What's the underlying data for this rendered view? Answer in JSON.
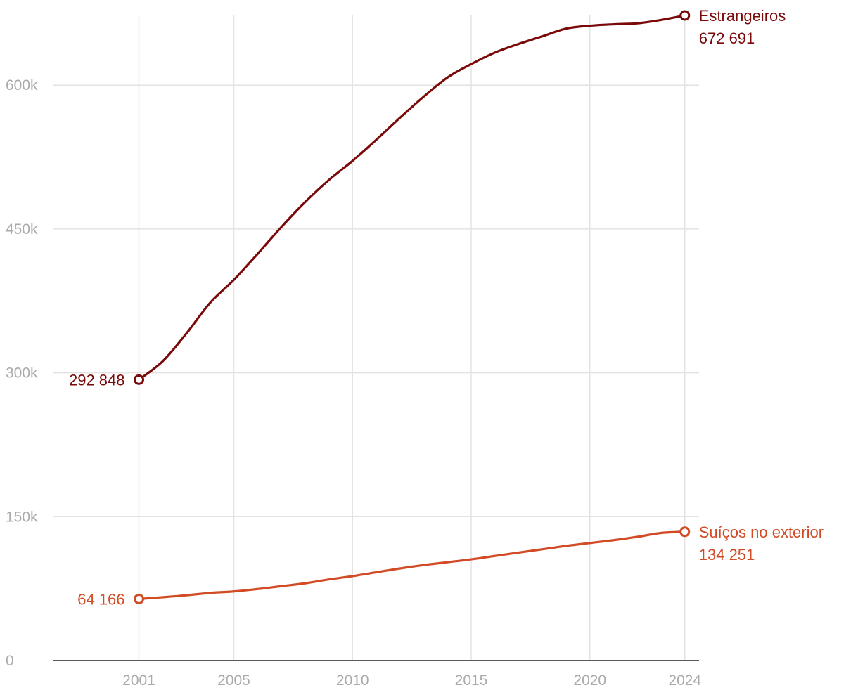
{
  "chart_data": {
    "type": "line",
    "x": [
      2001,
      2002,
      2003,
      2004,
      2005,
      2006,
      2007,
      2008,
      2009,
      2010,
      2011,
      2012,
      2013,
      2014,
      2015,
      2016,
      2017,
      2018,
      2019,
      2020,
      2021,
      2022,
      2023,
      2024
    ],
    "series": [
      {
        "name": "Estrangeiros",
        "color": "#7a0a0a",
        "values": [
          292848,
          312000,
          341000,
          373000,
          397000,
          424000,
          452000,
          478000,
          501000,
          521000,
          543000,
          566000,
          588000,
          608000,
          622000,
          634000,
          643000,
          651000,
          659000,
          662000,
          663500,
          664500,
          668000,
          672691
        ],
        "start_label": "292 848",
        "end_label": "672 691"
      },
      {
        "name": "Suíços no exterior",
        "color": "#d24b25",
        "values": [
          64166,
          66000,
          68000,
          70500,
          72000,
          74500,
          77500,
          80500,
          84500,
          88000,
          92000,
          96000,
          99500,
          102500,
          105500,
          109000,
          112500,
          116000,
          119500,
          122500,
          125500,
          129000,
          133000,
          134251
        ],
        "start_label": "64 166",
        "end_label": "134 251"
      }
    ],
    "y_ticks": [
      0,
      150000,
      300000,
      450000,
      600000
    ],
    "y_tick_labels": [
      "0",
      "150k",
      "300k",
      "450k",
      "600k"
    ],
    "x_ticks": [
      2001,
      2005,
      2010,
      2015,
      2020,
      2024
    ],
    "x_tick_labels": [
      "2001",
      "2005",
      "2010",
      "2015",
      "2020",
      "2024"
    ],
    "xlim": [
      1997.4,
      2024.6
    ],
    "ylim": [
      0,
      672691
    ],
    "grid": true,
    "legend": "inline-right"
  }
}
